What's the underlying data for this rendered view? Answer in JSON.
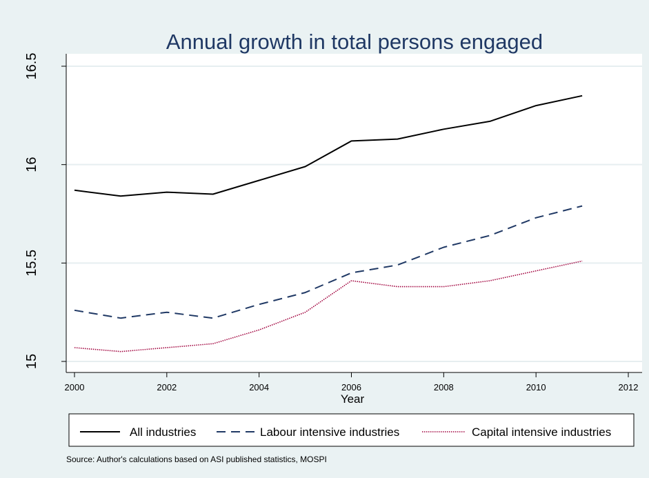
{
  "chart_data": {
    "type": "line",
    "title": "Annual growth in total persons engaged",
    "xlabel": "Year",
    "ylabel": "",
    "xlim": [
      2000,
      2012
    ],
    "ylim": [
      15,
      16.5
    ],
    "x_ticks": [
      "2000",
      "2002",
      "2004",
      "2006",
      "2008",
      "2010",
      "2012"
    ],
    "y_ticks": [
      "15",
      "15.5",
      "16",
      "16.5"
    ],
    "grid": true,
    "legend_position": "bottom",
    "x": [
      2000,
      2001,
      2002,
      2003,
      2004,
      2005,
      2006,
      2007,
      2008,
      2009,
      2010,
      2011
    ],
    "series": [
      {
        "name": "All industries",
        "style": "solid",
        "color": "#000000",
        "values": [
          15.87,
          15.84,
          15.86,
          15.85,
          15.92,
          15.99,
          16.12,
          16.13,
          16.18,
          16.22,
          16.3,
          16.35
        ]
      },
      {
        "name": "Labour intensive industries",
        "style": "dashed",
        "color": "#1f3864",
        "values": [
          15.26,
          15.22,
          15.25,
          15.22,
          15.29,
          15.35,
          15.45,
          15.49,
          15.58,
          15.64,
          15.73,
          15.79
        ]
      },
      {
        "name": "Capital intensive industries",
        "style": "dotted",
        "color": "#a0003c",
        "values": [
          15.07,
          15.05,
          15.07,
          15.09,
          15.16,
          15.25,
          15.41,
          15.38,
          15.38,
          15.41,
          15.46,
          15.51
        ]
      }
    ],
    "source_note": "Source: Author's calculations based on ASI published statistics, MOSPI"
  }
}
